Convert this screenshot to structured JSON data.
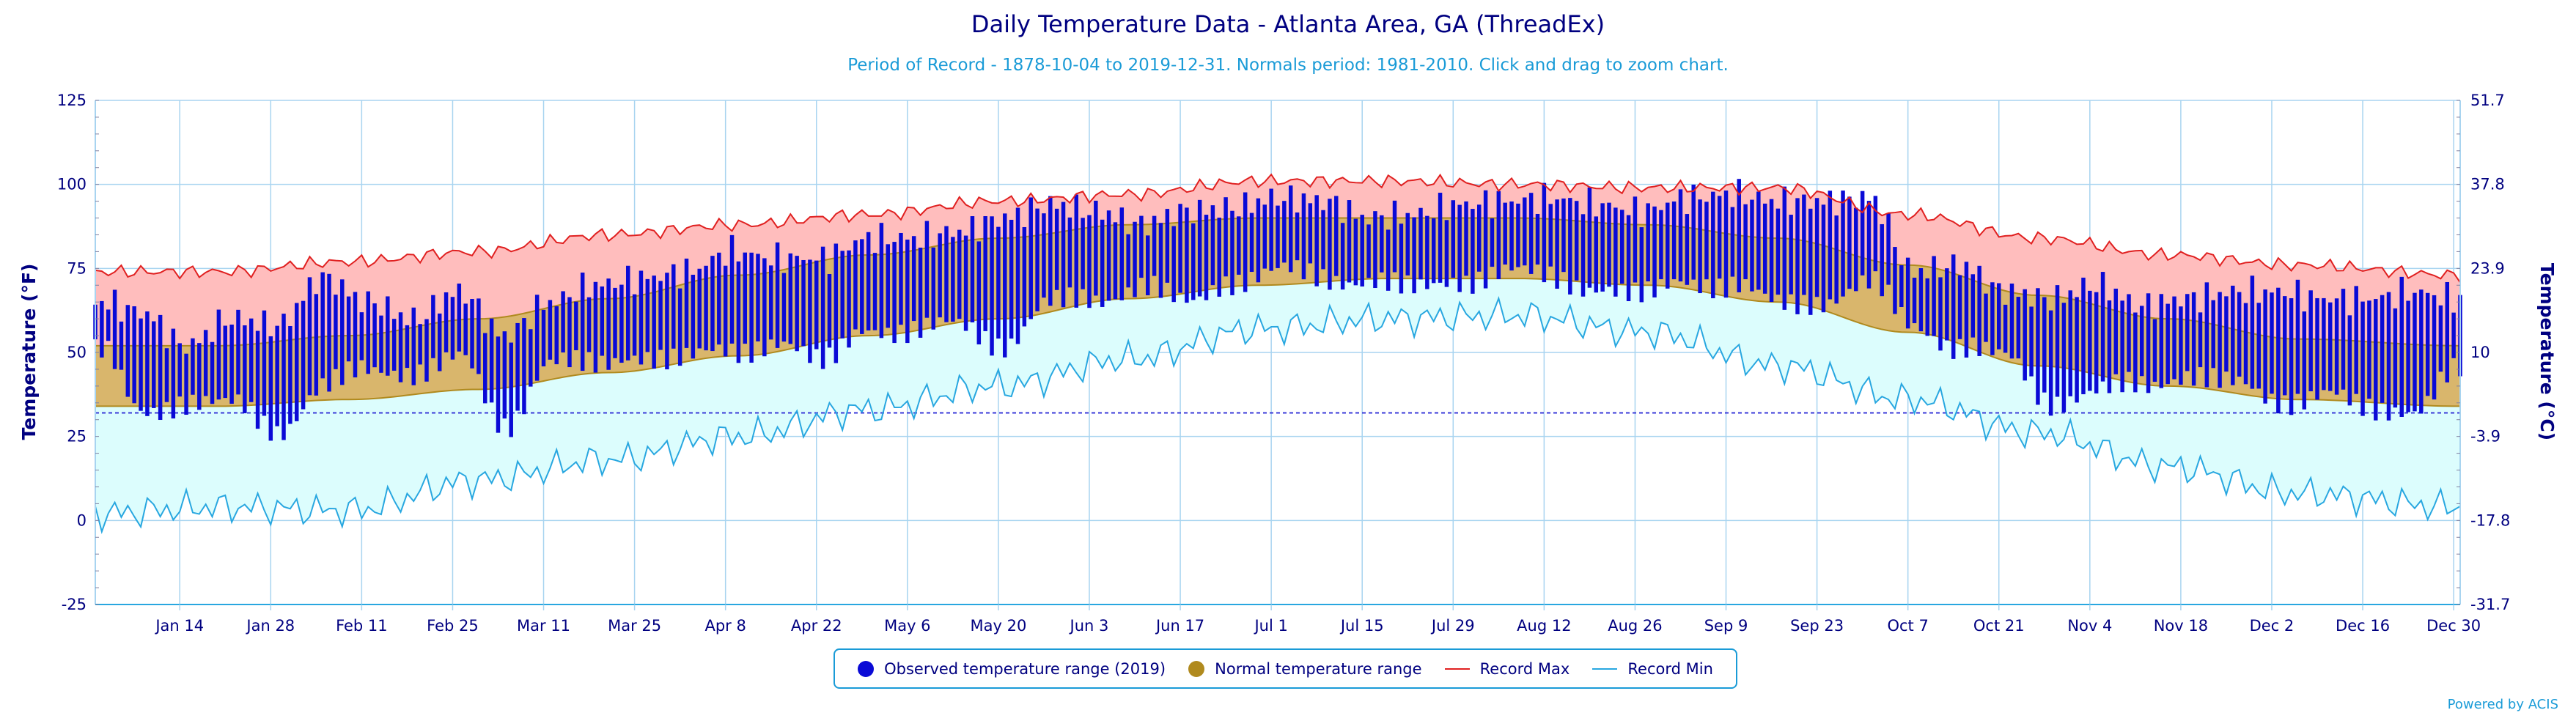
{
  "title": "Daily Temperature Data - Atlanta Area, GA (ThreadEx)",
  "subtitle": "Period of Record - 1878-10-04 to 2019-12-31. Normals period: 1981-2010. Click and drag to zoom chart.",
  "credit": "Powered by ACIS",
  "colors": {
    "observed": "#0a0ad6",
    "normal_fill": "#d9b66c",
    "normal_line": "#b08a1e",
    "record_max_fill": "#ffbdbd",
    "record_max_line": "#e02020",
    "record_min_fill": "#dcfdfd",
    "record_min_line": "#28a7e0",
    "grid": "#a8d4f0",
    "axis_text": "#000080",
    "freeze_line": "#3a3ad8"
  },
  "legend": {
    "observed": "Observed temperature range (2019)",
    "normal": "Normal temperature range",
    "record_max": "Record Max",
    "record_min": "Record Min"
  },
  "chart_data": {
    "type": "bar",
    "year": 2019,
    "x_axis": {
      "ticks": [
        "Jan 14",
        "Jan 28",
        "Feb 11",
        "Feb 25",
        "Mar 11",
        "Mar 25",
        "Apr 8",
        "Apr 22",
        "May 6",
        "May 20",
        "Jun 3",
        "Jun 17",
        "Jul 1",
        "Jul 15",
        "Jul 29",
        "Aug 12",
        "Aug 26",
        "Sep 9",
        "Sep 23",
        "Oct 7",
        "Oct 21",
        "Nov 4",
        "Nov 18",
        "Dec 2",
        "Dec 16",
        "Dec 30"
      ],
      "tick_days": [
        14,
        28,
        42,
        56,
        70,
        84,
        98,
        112,
        126,
        140,
        154,
        168,
        182,
        196,
        210,
        224,
        238,
        252,
        266,
        280,
        294,
        308,
        322,
        336,
        350,
        364
      ],
      "range_days": [
        1,
        365
      ]
    },
    "y_axis_left": {
      "label": "Temperature (°F)",
      "ticks": [
        -25,
        0,
        25,
        50,
        75,
        100,
        125
      ],
      "range": [
        -25,
        125
      ]
    },
    "y_axis_right": {
      "label": "Temperature (°C)",
      "ticks": [
        "-31.7",
        "-17.8",
        "-3.9",
        "10",
        "23.9",
        "37.8",
        "51.7"
      ]
    },
    "freezing_line_f": 32,
    "series": [
      {
        "name": "Normal temperature range",
        "anchors_day": [
          1,
          20,
          40,
          60,
          80,
          100,
          120,
          140,
          160,
          180,
          200,
          220,
          240,
          260,
          280,
          300,
          320,
          340,
          365
        ],
        "normal_high": [
          52,
          52,
          55,
          60,
          66,
          73,
          79,
          84,
          88,
          90,
          90,
          90,
          88,
          84,
          76,
          67,
          60,
          54,
          52
        ],
        "normal_low": [
          34,
          34,
          36,
          39,
          44,
          49,
          55,
          60,
          66,
          70,
          72,
          72,
          70,
          65,
          56,
          46,
          40,
          36,
          34
        ]
      },
      {
        "name": "Record Max",
        "anchors_day": [
          1,
          20,
          40,
          60,
          80,
          100,
          120,
          140,
          160,
          180,
          200,
          220,
          240,
          260,
          280,
          300,
          320,
          340,
          365
        ],
        "values": [
          74,
          74,
          77,
          80,
          85,
          88,
          91,
          95,
          97,
          101,
          101,
          100,
          99,
          99,
          91,
          84,
          79,
          76,
          73
        ]
      },
      {
        "name": "Record Min",
        "anchors_day": [
          1,
          20,
          40,
          60,
          80,
          100,
          120,
          140,
          160,
          180,
          200,
          220,
          240,
          260,
          280,
          300,
          320,
          340,
          365
        ],
        "values": [
          2,
          4,
          3,
          12,
          18,
          25,
          33,
          40,
          48,
          57,
          60,
          61,
          56,
          46,
          36,
          26,
          16,
          8,
          4
        ]
      },
      {
        "name": "Observed temperature range (2019)",
        "sample_days": [
          2,
          8,
          15,
          22,
          29,
          36,
          43,
          50,
          57,
          64,
          71,
          78,
          85,
          92,
          99,
          106,
          113,
          120,
          127,
          134,
          141,
          148,
          155,
          162,
          169,
          176,
          183,
          190,
          197,
          204,
          211,
          218,
          225,
          232,
          239,
          246,
          253,
          260,
          267,
          274,
          281,
          288,
          295,
          302,
          309,
          316,
          323,
          330,
          337,
          344,
          351,
          358,
          364
        ],
        "highs": [
          65,
          62,
          52,
          60,
          58,
          72,
          65,
          60,
          68,
          55,
          65,
          70,
          72,
          74,
          80,
          78,
          78,
          84,
          84,
          86,
          90,
          94,
          92,
          88,
          92,
          93,
          96,
          95,
          90,
          91,
          94,
          95,
          96,
          94,
          92,
          96,
          97,
          95,
          95,
          96,
          74,
          76,
          68,
          66,
          70,
          64,
          66,
          68,
          68,
          66,
          66,
          68,
          66
        ],
        "lows": [
          50,
          32,
          36,
          34,
          27,
          40,
          44,
          45,
          48,
          28,
          48,
          45,
          50,
          48,
          50,
          54,
          46,
          58,
          56,
          58,
          53,
          64,
          66,
          70,
          64,
          72,
          74,
          72,
          72,
          68,
          72,
          74,
          72,
          70,
          66,
          72,
          70,
          64,
          66,
          70,
          58,
          52,
          48,
          36,
          38,
          40,
          44,
          40,
          36,
          38,
          32,
          34,
          44
        ]
      }
    ]
  }
}
